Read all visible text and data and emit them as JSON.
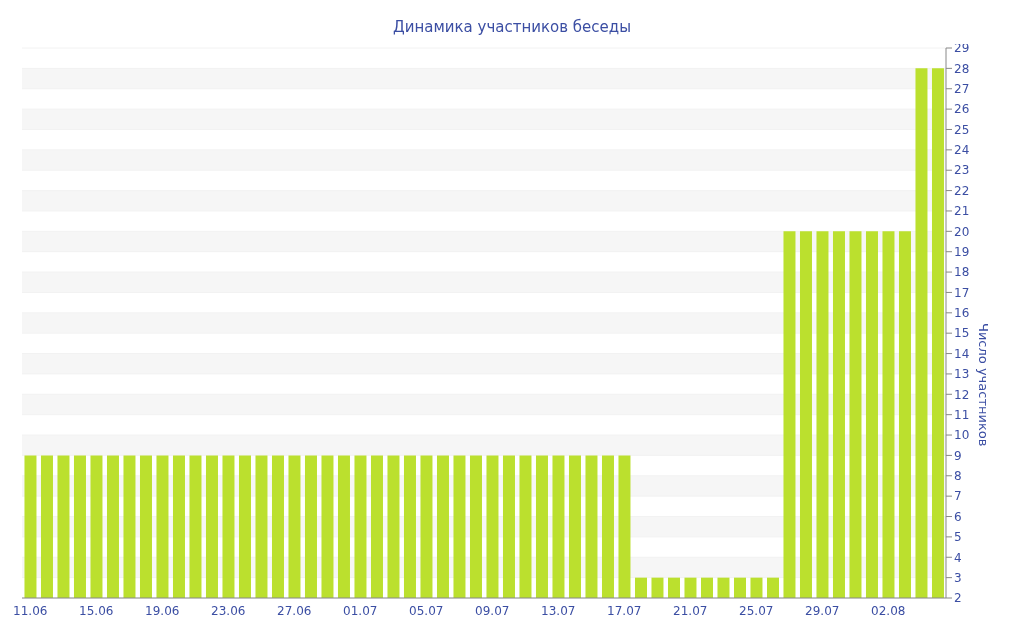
{
  "chart_data": {
    "type": "bar",
    "title": "Динамика участников беседы",
    "ylabel": "Число участников",
    "categories": [
      "11.06",
      null,
      null,
      null,
      "15.06",
      null,
      null,
      null,
      "19.06",
      null,
      null,
      null,
      "23.06",
      null,
      null,
      null,
      "27.06",
      null,
      null,
      null,
      "01.07",
      null,
      null,
      null,
      "05.07",
      null,
      null,
      null,
      "09.07",
      null,
      null,
      null,
      "13.07",
      null,
      null,
      null,
      "17.07",
      null,
      null,
      null,
      "21.07",
      null,
      null,
      null,
      "25.07",
      null,
      null,
      null,
      "29.07",
      null,
      null,
      null,
      "02.08",
      null,
      null,
      null
    ],
    "values": [
      9,
      9,
      9,
      9,
      9,
      9,
      9,
      9,
      9,
      9,
      9,
      9,
      9,
      9,
      9,
      9,
      9,
      9,
      9,
      9,
      9,
      9,
      9,
      9,
      9,
      9,
      9,
      9,
      9,
      9,
      9,
      9,
      9,
      9,
      9,
      9,
      9,
      3,
      3,
      3,
      3,
      3,
      3,
      3,
      3,
      3,
      20,
      20,
      20,
      20,
      20,
      20,
      20,
      20,
      28,
      28
    ],
    "color": "#bbe02e",
    "ylim": [
      2,
      29
    ],
    "yticks": [
      2,
      3,
      4,
      5,
      6,
      7,
      8,
      9,
      10,
      11,
      12,
      13,
      14,
      15,
      16,
      17,
      18,
      19,
      20,
      21,
      22,
      23,
      24,
      25,
      26,
      27,
      28,
      29
    ],
    "grid": "y"
  }
}
